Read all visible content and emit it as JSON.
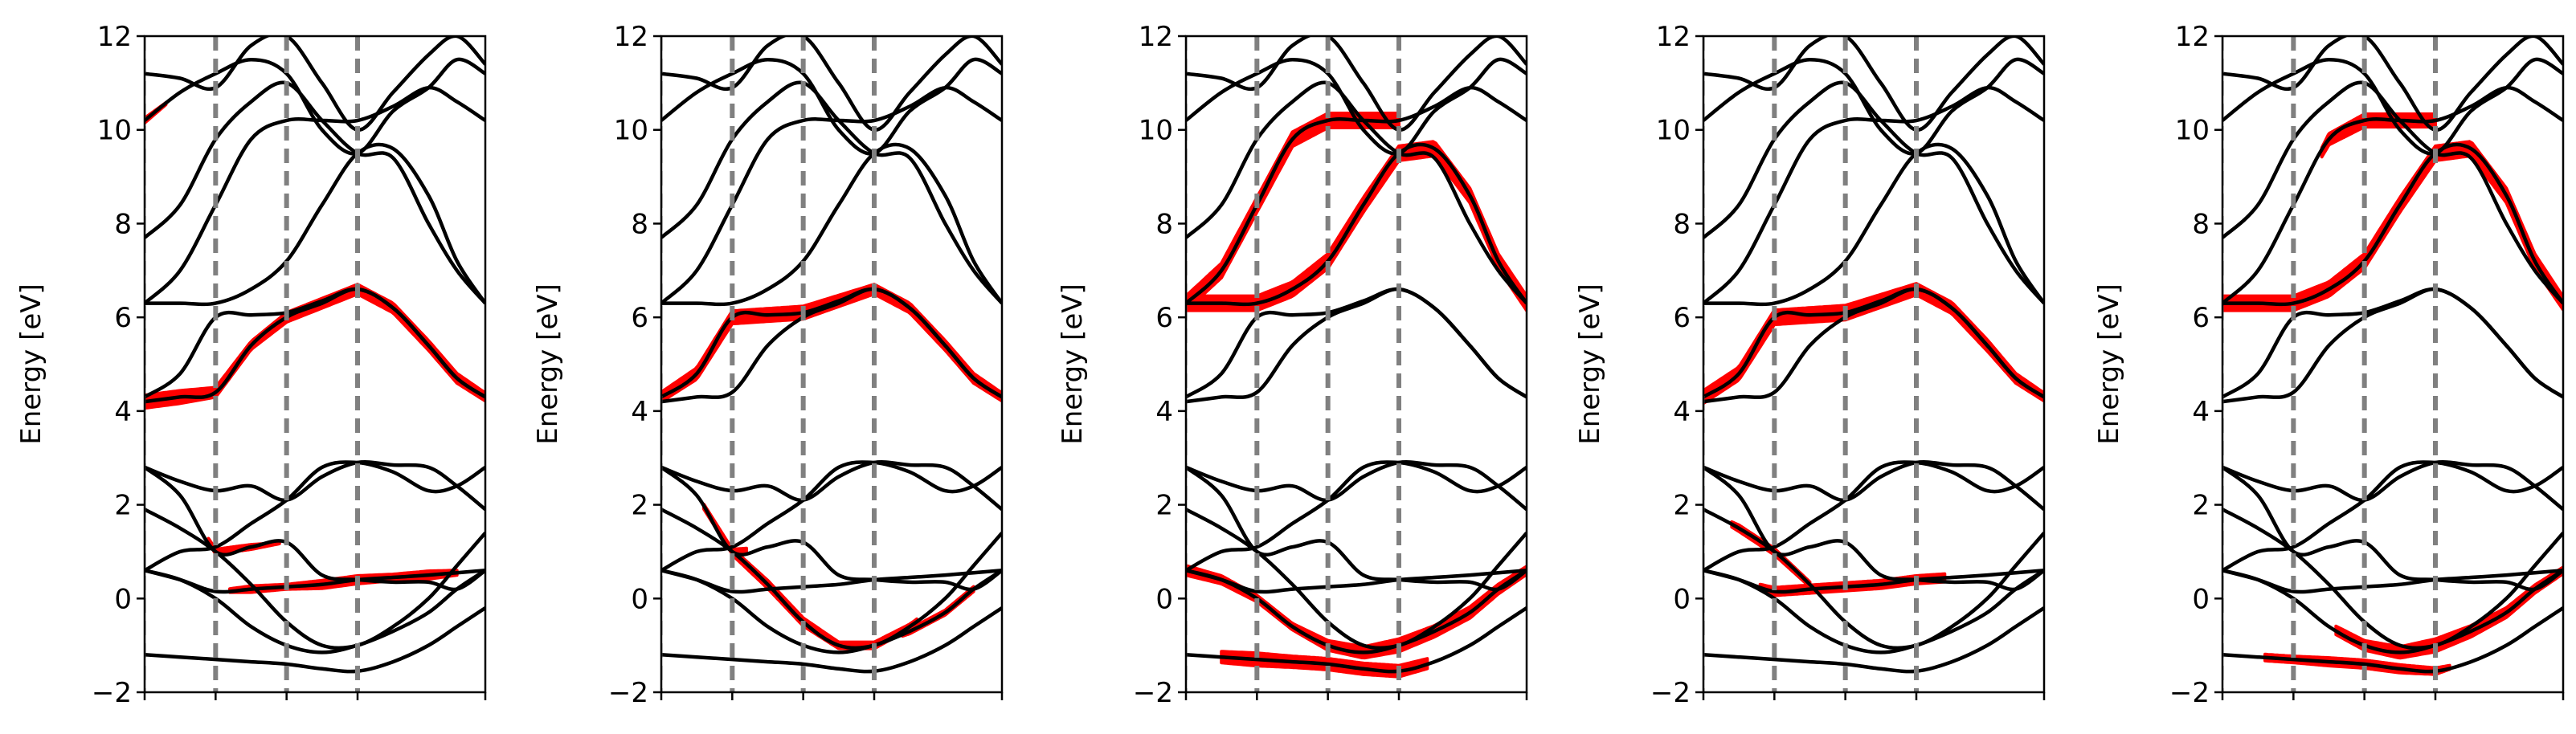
{
  "chart_data": {
    "type": "line",
    "description_free": true,
    "ylim": [
      -2,
      12
    ],
    "yticks": [
      -2,
      0,
      2,
      4,
      6,
      8,
      10,
      12
    ],
    "ylabel": "Energy [eV]",
    "xlim": [
      0,
      4.8
    ],
    "kpoint_lines": [
      1.0,
      2.0,
      3.0
    ],
    "colors": {
      "bands": "#000000",
      "projection": "#ff0000",
      "kpath": "#808080"
    },
    "bands": [
      {
        "x": [
          0,
          0.5,
          1.0,
          1.5,
          2.0,
          2.5,
          3.0,
          3.5,
          4.0,
          4.4,
          4.8
        ],
        "y": [
          -1.2,
          -1.25,
          -1.3,
          -1.35,
          -1.4,
          -1.5,
          -1.55,
          -1.35,
          -1.0,
          -0.6,
          -0.2
        ]
      },
      {
        "x": [
          0,
          0.5,
          1.0,
          1.5,
          2.0,
          2.5,
          3.0,
          3.5,
          4.0,
          4.4,
          4.8
        ],
        "y": [
          0.6,
          0.4,
          0.0,
          -0.6,
          -1.0,
          -1.15,
          -1.0,
          -0.7,
          -0.3,
          0.2,
          0.6
        ]
      },
      {
        "x": [
          0,
          0.5,
          1.0,
          1.5,
          2.0,
          2.5,
          3.0,
          3.5,
          4.0,
          4.4,
          4.8
        ],
        "y": [
          0.6,
          0.4,
          0.15,
          0.2,
          0.25,
          0.3,
          0.4,
          0.45,
          0.5,
          0.55,
          0.6
        ]
      },
      {
        "x": [
          0,
          0.5,
          1.0,
          1.5,
          2.0,
          2.5,
          3.0,
          3.5,
          4.0,
          4.4,
          4.8
        ],
        "y": [
          1.9,
          1.5,
          1.0,
          0.3,
          -0.5,
          -1.0,
          -1.0,
          -0.6,
          0.0,
          0.7,
          1.4
        ]
      },
      {
        "x": [
          0,
          0.5,
          1.0,
          1.5,
          2.0,
          2.5,
          3.0,
          3.5,
          4.0,
          4.4,
          4.8
        ],
        "y": [
          2.8,
          2.2,
          1.0,
          1.1,
          1.2,
          0.5,
          0.4,
          0.35,
          0.35,
          0.2,
          0.6
        ]
      },
      {
        "x": [
          0,
          0.5,
          1.0,
          1.5,
          2.0,
          2.5,
          3.0,
          3.5,
          4.0,
          4.4,
          4.8
        ],
        "y": [
          2.8,
          2.5,
          2.3,
          2.4,
          2.1,
          2.6,
          2.9,
          2.85,
          2.8,
          2.4,
          1.9
        ]
      },
      {
        "x": [
          0,
          0.5,
          1.0,
          1.5,
          2.0,
          2.5,
          3.0,
          3.5,
          4.0,
          4.4,
          4.8
        ],
        "y": [
          0.6,
          1.0,
          1.1,
          1.6,
          2.1,
          2.8,
          2.9,
          2.7,
          2.3,
          2.4,
          2.8
        ]
      },
      {
        "x": [
          0,
          0.5,
          1.0,
          1.5,
          2.0,
          2.5,
          3.0,
          3.5,
          4.0,
          4.4,
          4.8
        ],
        "y": [
          4.2,
          4.3,
          4.4,
          5.4,
          6.0,
          6.3,
          6.6,
          6.2,
          5.4,
          4.7,
          4.3
        ]
      },
      {
        "x": [
          0,
          0.5,
          1.0,
          1.5,
          2.0,
          2.5,
          3.0,
          3.5,
          4.0,
          4.4,
          4.8
        ],
        "y": [
          4.3,
          4.8,
          6.0,
          6.05,
          6.1,
          6.35,
          6.6,
          6.2,
          5.4,
          4.7,
          4.3
        ]
      },
      {
        "x": [
          0,
          0.5,
          1.0,
          1.5,
          2.0,
          2.5,
          3.0,
          3.5,
          4.0,
          4.4,
          4.8
        ],
        "y": [
          6.3,
          6.3,
          6.3,
          6.6,
          7.2,
          8.4,
          9.5,
          9.6,
          8.6,
          7.2,
          6.3
        ]
      },
      {
        "x": [
          0,
          0.5,
          1.0,
          1.5,
          2.0,
          2.5,
          3.0,
          3.5,
          4.0,
          4.4,
          4.8
        ],
        "y": [
          6.3,
          7.0,
          8.4,
          9.8,
          10.2,
          10.2,
          10.2,
          10.5,
          10.9,
          10.6,
          10.2
        ]
      },
      {
        "x": [
          0,
          0.5,
          1.0,
          1.5,
          2.0,
          2.5,
          3.0,
          3.5,
          4.0,
          4.4,
          4.8
        ],
        "y": [
          7.7,
          8.4,
          9.8,
          10.6,
          11.0,
          10.2,
          9.5,
          9.4,
          8.0,
          7.0,
          6.3
        ]
      },
      {
        "x": [
          0,
          0.5,
          1.0,
          1.5,
          2.0,
          2.5,
          3.0,
          3.5,
          4.0,
          4.4,
          4.8
        ],
        "y": [
          10.2,
          10.8,
          11.2,
          11.5,
          11.2,
          10.0,
          9.5,
          10.4,
          10.9,
          11.5,
          11.2
        ]
      },
      {
        "x": [
          0,
          0.5,
          1.0,
          1.5,
          2.0,
          2.5,
          3.0,
          3.5,
          4.0,
          4.4,
          4.8
        ],
        "y": [
          11.2,
          11.1,
          10.9,
          11.8,
          12.0,
          11.0,
          10.0,
          10.8,
          11.6,
          12.0,
          11.4
        ]
      }
    ],
    "panels": [
      {
        "projections": [
          {
            "band": 7,
            "from": 0,
            "to": 4.8,
            "w": [
              8,
              8,
              6,
              5,
              6,
              6,
              6,
              6,
              6,
              6,
              5
            ]
          },
          {
            "band": 2,
            "from": 1.2,
            "to": 4.4,
            "w": [
              0,
              0,
              1,
              4,
              3,
              5,
              5,
              4,
              5,
              3,
              0
            ]
          },
          {
            "band": 4,
            "from": 0.9,
            "to": 1.9,
            "w": [
              0,
              0,
              3,
              3,
              0,
              0,
              0,
              0,
              0,
              0,
              0
            ]
          },
          {
            "band": 12,
            "from": 0,
            "to": 0.3,
            "w": [
              3,
              0,
              0,
              0,
              0,
              0,
              0,
              0,
              0,
              0,
              0
            ]
          }
        ]
      },
      {
        "projections": [
          {
            "band": 8,
            "from": 0,
            "to": 4.8,
            "w": [
              6,
              7,
              8,
              8,
              8,
              7,
              6,
              6,
              6,
              6,
              5
            ]
          },
          {
            "band": 3,
            "from": 1.0,
            "to": 3.6,
            "w": [
              0,
              0,
              4,
              5,
              5,
              4,
              4,
              3,
              0,
              0,
              0
            ]
          },
          {
            "band": 4,
            "from": 0.6,
            "to": 1.2,
            "w": [
              0,
              3,
              3,
              0,
              0,
              0,
              0,
              0,
              0,
              0,
              0
            ]
          },
          {
            "band": 1,
            "from": 3.4,
            "to": 4.4,
            "w": [
              0,
              0,
              0,
              0,
              0,
              0,
              0,
              3,
              3,
              3,
              0
            ]
          }
        ]
      },
      {
        "projections": [
          {
            "band": 9,
            "from": 0,
            "to": 4.8,
            "w": [
              9,
              9,
              9,
              9,
              9,
              9,
              9,
              9,
              9,
              9,
              9
            ]
          },
          {
            "band": 10,
            "from": 0,
            "to": 3.0,
            "w": [
              9,
              9,
              9,
              9,
              9,
              9,
              9,
              0,
              0,
              0,
              0
            ]
          },
          {
            "band": 0,
            "from": 0.5,
            "to": 3.4,
            "w": [
              0,
              7,
              8,
              7,
              7,
              7,
              7,
              6,
              0,
              0,
              0
            ]
          },
          {
            "band": 1,
            "from": 0,
            "to": 4.8,
            "w": [
              6,
              5,
              4,
              4,
              6,
              7,
              8,
              7,
              7,
              6,
              5
            ]
          }
        ]
      },
      {
        "projections": [
          {
            "band": 8,
            "from": 0,
            "to": 4.8,
            "w": [
              8,
              8,
              9,
              9,
              9,
              8,
              7,
              7,
              7,
              6,
              5
            ]
          },
          {
            "band": 2,
            "from": 0.8,
            "to": 3.4,
            "w": [
              0,
              0,
              5,
              5,
              5,
              5,
              5,
              5,
              0,
              0,
              0
            ]
          },
          {
            "band": 3,
            "from": 0.4,
            "to": 1.5,
            "w": [
              0,
              4,
              4,
              3,
              0,
              0,
              0,
              0,
              0,
              0,
              0
            ]
          }
        ]
      },
      {
        "projections": [
          {
            "band": 9,
            "from": 0,
            "to": 4.8,
            "w": [
              9,
              9,
              9,
              9,
              9,
              9,
              9,
              9,
              9,
              9,
              8
            ]
          },
          {
            "band": 10,
            "from": 1.4,
            "to": 3.0,
            "w": [
              0,
              0,
              0,
              7,
              8,
              8,
              8,
              0,
              0,
              0,
              0
            ]
          },
          {
            "band": 1,
            "from": 1.6,
            "to": 4.8,
            "w": [
              0,
              0,
              0,
              5,
              6,
              7,
              8,
              7,
              6,
              5,
              4
            ]
          },
          {
            "band": 0,
            "from": 0.6,
            "to": 3.2,
            "w": [
              0,
              4,
              4,
              5,
              5,
              5,
              4,
              0,
              0,
              0,
              0
            ]
          }
        ]
      }
    ]
  }
}
